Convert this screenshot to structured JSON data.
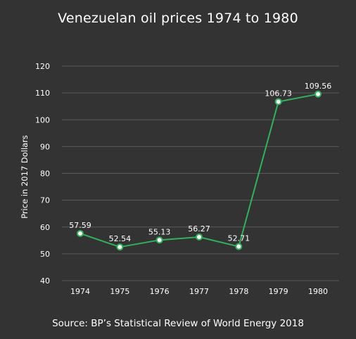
{
  "chart_data": {
    "type": "line",
    "title": "Venezuelan oil prices 1974 to 1980",
    "source": "Source: BP’s Statistical Review of World Energy 2018",
    "ylabel": "Price in 2017 Dollars",
    "xlabel": "",
    "categories": [
      "1974",
      "1975",
      "1976",
      "1977",
      "1978",
      "1979",
      "1980"
    ],
    "values": [
      57.59,
      52.54,
      55.13,
      56.27,
      52.71,
      106.73,
      109.56
    ],
    "data_labels": [
      "57.59",
      "52.54",
      "55.13",
      "56.27",
      "52.71",
      "106.73",
      "109.56"
    ],
    "ylim": [
      40,
      120
    ],
    "yticks": [
      40,
      50,
      60,
      70,
      80,
      90,
      100,
      110,
      120
    ],
    "grid": true,
    "legend": "none",
    "colors": {
      "background": "#333333",
      "line": "#2eb35a",
      "marker_fill": "#ffffff",
      "grid": "#5a5a5a",
      "text": "#ffffff"
    }
  }
}
